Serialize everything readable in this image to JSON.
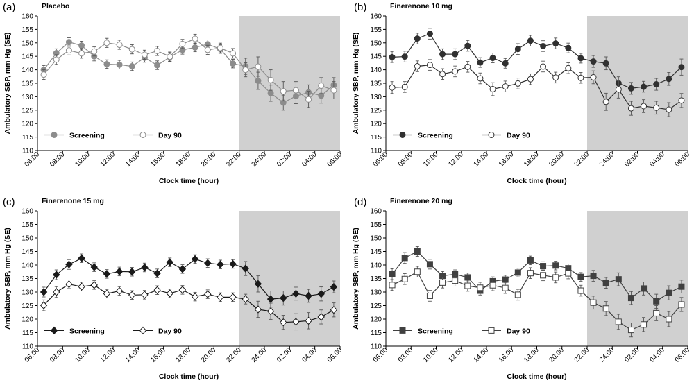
{
  "figure": {
    "x_ticks": [
      "06:00",
      "08:00",
      "10:00",
      "12:00",
      "14:00",
      "16:00",
      "18:00",
      "20:00",
      "22:00",
      "24:00",
      "02:00",
      "04:00",
      "06:00"
    ],
    "y_ticks": [
      "110",
      "115",
      "120",
      "125",
      "130",
      "135",
      "140",
      "145",
      "150",
      "155",
      "160"
    ],
    "xlabel": "Clock time (hour)",
    "ylabel": "Ambulatory SBP, mm Hg (SE)",
    "night_shading": {
      "from_hour": 22,
      "to_hour": 30,
      "color": "#d0d0d0"
    }
  },
  "chart_data": [
    {
      "type": "line",
      "letter": "(a)",
      "title": "Placebo",
      "xlabel": "Clock time (hour)",
      "ylabel": "Ambulatory SBP, mm Hg (SE)",
      "ylim": [
        110,
        160
      ],
      "x_hours": [
        6.5,
        7.5,
        8.5,
        9.5,
        10.5,
        11.5,
        12.5,
        13.5,
        14.5,
        15.5,
        16.5,
        17.5,
        18.5,
        19.5,
        20.5,
        21.5,
        22.5,
        23.5,
        24.5,
        25.5,
        26.5,
        27.5,
        28.5,
        29.5
      ],
      "legend": [
        "Screening",
        "Day 90"
      ],
      "series": [
        {
          "name": "Screening",
          "marker": "circle",
          "fill": "#8c8c8c",
          "line": "#8c8c8c",
          "values": [
            140.0,
            146.2,
            150.3,
            149.0,
            145.0,
            142.1,
            141.9,
            141.3,
            144.5,
            141.7,
            144.7,
            147.4,
            148.3,
            149.5,
            147.7,
            142.3,
            141.3,
            135.9,
            131.3,
            127.8,
            130.2,
            131.6,
            130.4,
            134.3
          ],
          "errors": [
            1.6,
            1.6,
            1.6,
            1.6,
            1.7,
            1.6,
            1.6,
            1.6,
            1.7,
            1.6,
            1.6,
            1.6,
            1.6,
            1.6,
            1.6,
            1.6,
            3.0,
            3.2,
            3.0,
            2.8,
            2.8,
            2.8,
            2.8,
            2.8
          ]
        },
        {
          "name": "Day 90",
          "marker": "circle",
          "fill": "#ffffff",
          "line": "#8c8c8c",
          "values": [
            138.2,
            143.8,
            147.2,
            146.1,
            146.8,
            150.0,
            149.3,
            147.6,
            145.6,
            147.0,
            144.9,
            149.6,
            151.5,
            147.4,
            148.1,
            146.1,
            140.0,
            141.2,
            136.2,
            132.0,
            132.4,
            129.0,
            134.1,
            132.4
          ],
          "errors": [
            1.8,
            1.8,
            1.7,
            1.8,
            1.7,
            1.7,
            1.7,
            1.7,
            1.7,
            1.7,
            1.7,
            1.7,
            1.7,
            1.7,
            1.8,
            1.8,
            2.6,
            3.6,
            3.8,
            3.6,
            3.2,
            3.0,
            3.0,
            3.2
          ]
        }
      ]
    },
    {
      "type": "line",
      "letter": "(b)",
      "title": "Finerenone 10 mg",
      "xlabel": "Clock time (hour)",
      "ylabel": "Ambulatory SBP, mm Hg (SE)",
      "ylim": [
        110,
        160
      ],
      "x_hours": [
        6.5,
        7.5,
        8.5,
        9.5,
        10.5,
        11.5,
        12.5,
        13.5,
        14.5,
        15.5,
        16.5,
        17.5,
        18.5,
        19.5,
        20.5,
        21.5,
        22.5,
        23.5,
        24.5,
        25.5,
        26.5,
        27.5,
        28.5,
        29.5
      ],
      "legend": [
        "Screening",
        "Day 90"
      ],
      "series": [
        {
          "name": "Screening",
          "marker": "circle",
          "fill": "#303030",
          "line": "#303030",
          "values": [
            144.7,
            144.9,
            151.6,
            153.4,
            145.8,
            145.8,
            148.9,
            142.7,
            144.4,
            142.4,
            147.7,
            150.8,
            148.8,
            149.8,
            148.1,
            144.3,
            143.1,
            142.4,
            135.0,
            133.1,
            133.7,
            134.6,
            136.6,
            141.0
          ],
          "errors": [
            2.0,
            2.0,
            2.0,
            2.0,
            2.0,
            2.0,
            2.0,
            1.8,
            1.8,
            1.8,
            2.0,
            2.0,
            2.0,
            2.0,
            1.8,
            1.8,
            2.2,
            2.4,
            2.4,
            2.2,
            2.0,
            2.2,
            2.4,
            3.0
          ]
        },
        {
          "name": "Day 90",
          "marker": "circle",
          "fill": "#ffffff",
          "line": "#303030",
          "values": [
            133.4,
            133.6,
            141.3,
            141.8,
            138.4,
            139.4,
            141.1,
            136.8,
            132.8,
            133.8,
            134.9,
            136.5,
            141.2,
            137.1,
            140.6,
            137.0,
            137.2,
            128.1,
            132.7,
            125.7,
            126.5,
            125.9,
            125.2,
            128.6
          ],
          "errors": [
            2.2,
            2.0,
            2.0,
            2.0,
            2.0,
            2.0,
            2.0,
            2.0,
            2.4,
            2.0,
            2.0,
            2.0,
            2.0,
            2.0,
            2.0,
            2.0,
            2.4,
            3.2,
            3.2,
            2.6,
            2.4,
            2.4,
            2.6,
            2.6
          ]
        }
      ]
    },
    {
      "type": "line",
      "letter": "(c)",
      "title": "Finerenone 15 mg",
      "xlabel": "Clock time (hour)",
      "ylabel": "Ambulatory SBP, mm Hg (SE)",
      "ylim": [
        110,
        160
      ],
      "x_hours": [
        6.5,
        7.5,
        8.5,
        9.5,
        10.5,
        11.5,
        12.5,
        13.5,
        14.5,
        15.5,
        16.5,
        17.5,
        18.5,
        19.5,
        20.5,
        21.5,
        22.5,
        23.5,
        24.5,
        25.5,
        26.5,
        27.5,
        28.5,
        29.5
      ],
      "legend": [
        "Screening",
        "Day 90"
      ],
      "series": [
        {
          "name": "Screening",
          "marker": "diamond",
          "fill": "#1a1a1a",
          "line": "#1a1a1a",
          "values": [
            130.0,
            136.4,
            140.2,
            142.5,
            139.2,
            136.7,
            137.6,
            137.5,
            139.1,
            136.9,
            141.0,
            138.5,
            142.2,
            140.7,
            140.2,
            140.4,
            138.7,
            133.0,
            127.4,
            127.8,
            129.4,
            128.6,
            129.3,
            131.9
          ],
          "errors": [
            1.8,
            1.8,
            1.8,
            1.6,
            1.6,
            1.6,
            1.6,
            1.6,
            1.6,
            1.6,
            1.6,
            1.6,
            1.6,
            1.6,
            1.6,
            1.6,
            2.6,
            3.0,
            3.0,
            2.6,
            2.4,
            2.4,
            2.6,
            2.2
          ]
        },
        {
          "name": "Day 90",
          "marker": "diamond",
          "fill": "#ffffff",
          "line": "#1a1a1a",
          "values": [
            125.1,
            130.0,
            132.9,
            132.0,
            132.6,
            129.4,
            130.4,
            128.9,
            129.0,
            130.7,
            129.5,
            130.8,
            128.3,
            129.2,
            128.1,
            128.1,
            127.4,
            123.6,
            122.9,
            118.8,
            119.0,
            119.4,
            120.8,
            123.4
          ],
          "errors": [
            2.0,
            2.0,
            1.6,
            1.6,
            1.6,
            1.6,
            1.6,
            1.6,
            1.6,
            1.6,
            1.6,
            1.6,
            1.6,
            1.6,
            1.6,
            1.6,
            1.8,
            3.0,
            3.0,
            2.6,
            3.0,
            3.0,
            2.6,
            2.6
          ]
        }
      ]
    },
    {
      "type": "line",
      "letter": "(d)",
      "title": "Finerenone 20 mg",
      "xlabel": "Clock time (hour)",
      "ylabel": "Ambulatory SBP, mm Hg (SE)",
      "ylim": [
        110,
        160
      ],
      "x_hours": [
        6.5,
        7.5,
        8.5,
        9.5,
        10.5,
        11.5,
        12.5,
        13.5,
        14.5,
        15.5,
        16.5,
        17.5,
        18.5,
        19.5,
        20.5,
        21.5,
        22.5,
        23.5,
        24.5,
        25.5,
        26.5,
        27.5,
        28.5,
        29.5
      ],
      "legend": [
        "Screening",
        "Day 90"
      ],
      "series": [
        {
          "name": "Screening",
          "marker": "square",
          "fill": "#404040",
          "line": "#404040",
          "values": [
            136.6,
            142.6,
            145.0,
            140.3,
            136.0,
            136.6,
            135.4,
            130.5,
            134.0,
            134.6,
            137.2,
            141.7,
            139.6,
            139.8,
            138.8,
            135.6,
            136.0,
            133.4,
            134.7,
            127.8,
            131.3,
            126.6,
            129.7,
            132.0
          ],
          "errors": [
            2.0,
            2.0,
            1.8,
            1.8,
            1.6,
            1.6,
            1.6,
            1.6,
            1.6,
            1.6,
            1.6,
            1.6,
            1.6,
            1.6,
            1.6,
            1.6,
            2.0,
            2.0,
            2.4,
            2.4,
            2.4,
            2.6,
            2.6,
            2.4
          ]
        },
        {
          "name": "Day 90",
          "marker": "square",
          "fill": "#ffffff",
          "line": "#404040",
          "values": [
            132.6,
            134.8,
            137.5,
            128.6,
            133.5,
            134.2,
            132.3,
            131.6,
            132.5,
            131.5,
            129.0,
            137.0,
            136.2,
            135.4,
            136.9,
            130.5,
            126.1,
            123.9,
            119.0,
            116.0,
            118.0,
            122.2,
            120.0,
            125.4
          ],
          "errors": [
            2.0,
            2.0,
            2.0,
            2.0,
            2.0,
            2.0,
            2.0,
            2.0,
            2.0,
            2.0,
            2.0,
            2.0,
            2.0,
            2.0,
            2.0,
            2.0,
            2.4,
            2.6,
            2.8,
            2.6,
            2.6,
            2.8,
            2.8,
            2.6
          ]
        }
      ]
    }
  ]
}
